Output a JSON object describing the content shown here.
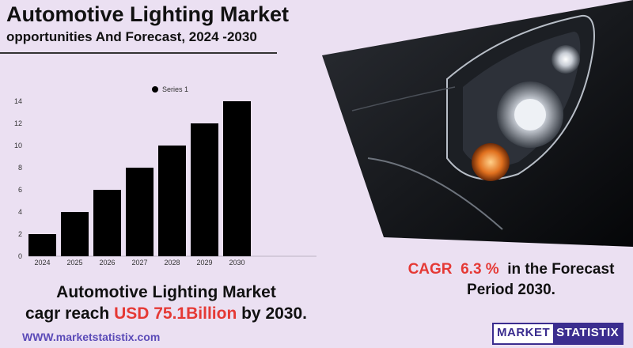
{
  "header": {
    "title": "Automotive Lighting Market",
    "subtitle": "opportunities And Forecast, 2024 -2030"
  },
  "chart_data": {
    "type": "bar",
    "categories": [
      "2024",
      "2025",
      "2026",
      "2027",
      "2028",
      "2029",
      "2030"
    ],
    "series": [
      {
        "name": "Series 1",
        "values": [
          2,
          4,
          6,
          8,
          10,
          12,
          14
        ]
      }
    ],
    "yticks": [
      "0",
      "2",
      "4",
      "6",
      "8",
      "10",
      "12",
      "14"
    ],
    "ylim": [
      0,
      14
    ],
    "grid": false,
    "legend": "top-center",
    "bar_color": "#000000"
  },
  "cagr": {
    "label": "CAGR",
    "value": "6.3 %",
    "text": "in the  Forecast",
    "period": "Period  2030."
  },
  "bottom": {
    "line1": "Automotive Lighting Market",
    "line2_prefix": "cagr reach",
    "value": "USD 75.1Billion",
    "line2_suffix": "by 2030."
  },
  "website": "WWW.marketstatistix.com",
  "logo": {
    "part1": "MARKET",
    "part2": "STATISTIX"
  },
  "colors": {
    "background": "#ebe0f2",
    "accent": "#e53935",
    "brand": "#3b2d8f"
  },
  "image": {
    "icon": "car-headlight-icon"
  }
}
